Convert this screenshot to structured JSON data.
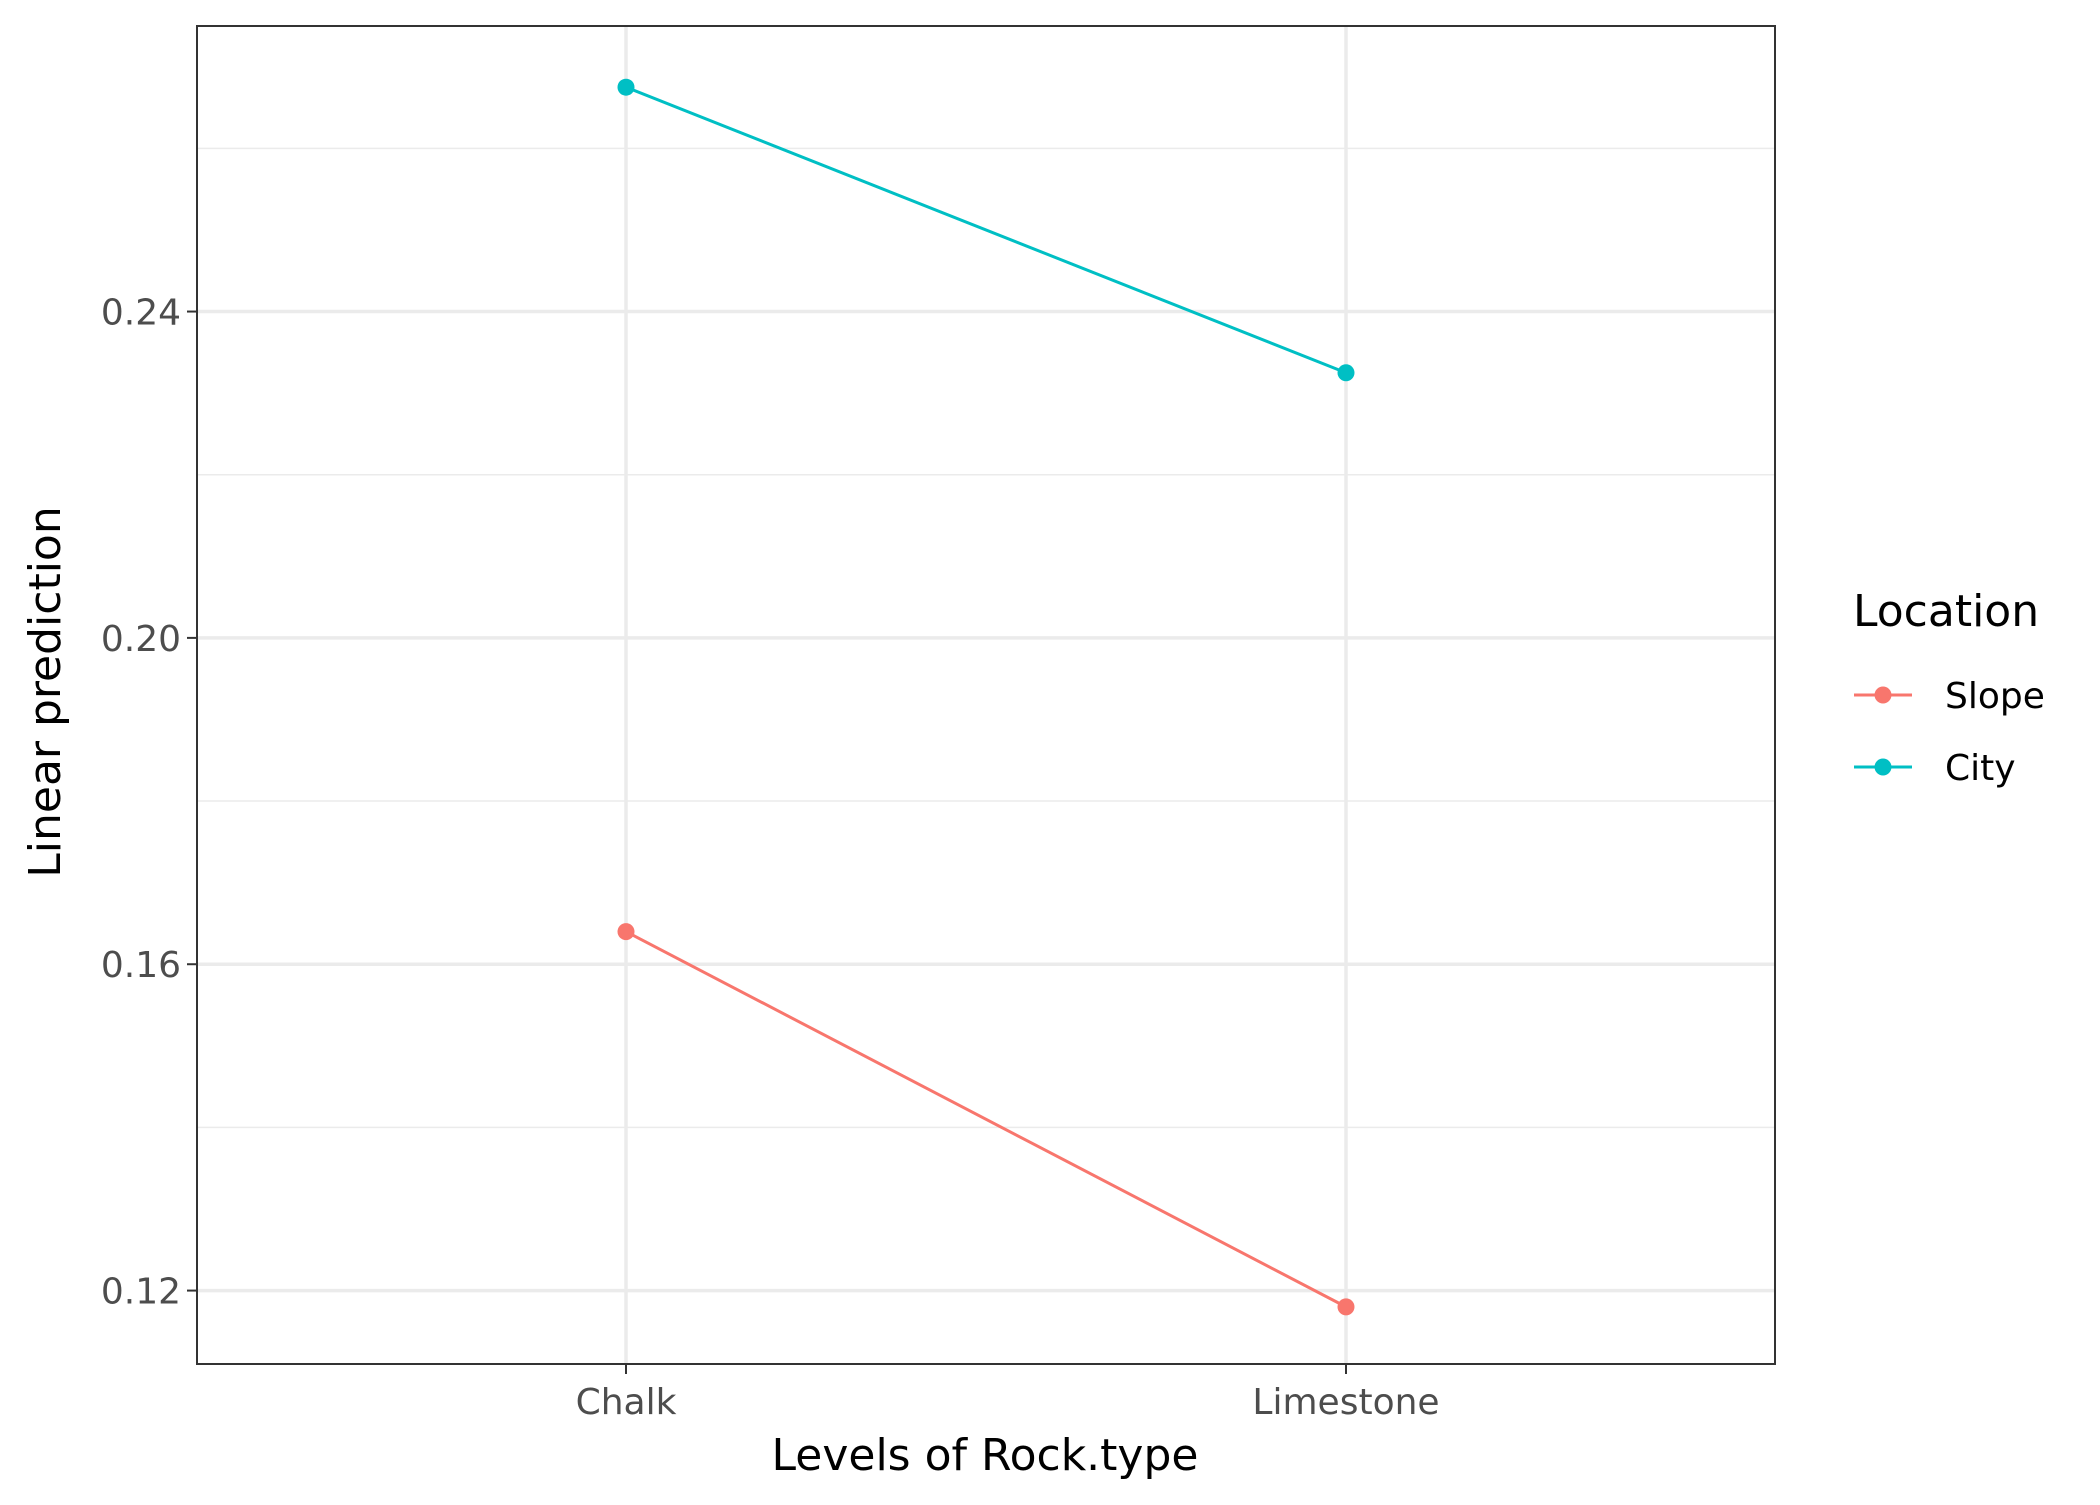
{
  "chart_data": {
    "type": "line",
    "title": "",
    "xlabel": "Levels of Rock.type",
    "ylabel": "Linear prediction",
    "categories": [
      "Chalk",
      "Limestone"
    ],
    "series": [
      {
        "name": "Slope",
        "values": [
          0.164,
          0.118
        ],
        "color": "#F8766D"
      },
      {
        "name": "City",
        "values": [
          0.2675,
          0.2325
        ],
        "color": "#00BFC4"
      }
    ],
    "ylim": [
      0.111,
      0.275
    ],
    "yticks": [
      0.12,
      0.16,
      0.2,
      0.24
    ],
    "ytick_labels": [
      "0.12",
      "0.16",
      "0.20",
      "0.24"
    ],
    "grid": true,
    "legend": {
      "title": "Location",
      "placement": "right",
      "entries": [
        "Slope",
        "City"
      ]
    }
  }
}
